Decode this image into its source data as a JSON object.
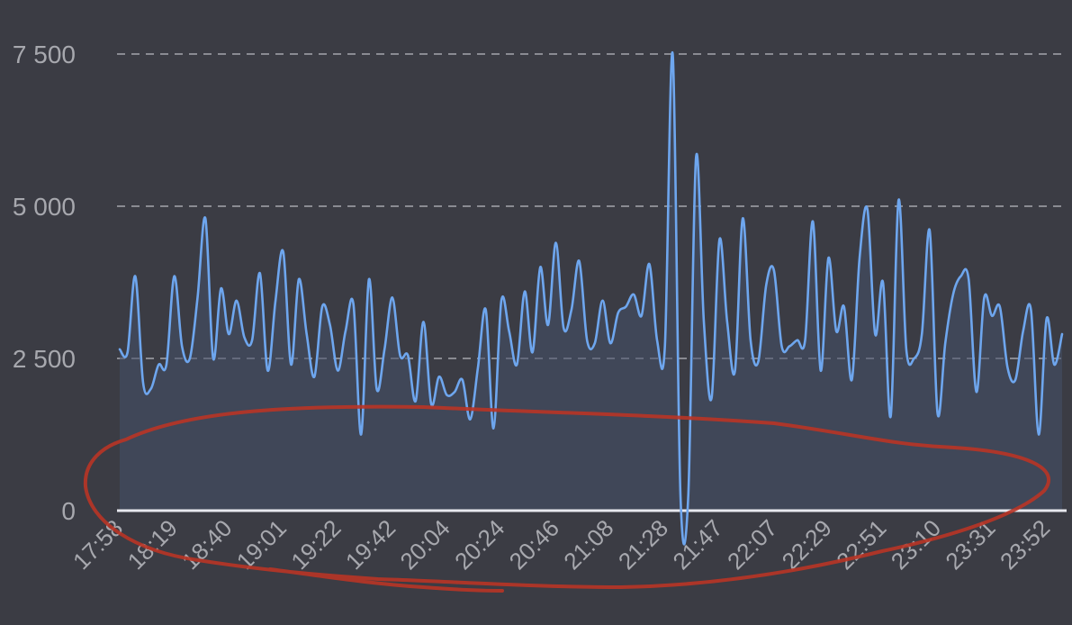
{
  "chart_data": {
    "type": "area",
    "title": "",
    "xlabel": "",
    "ylabel": "",
    "ylim": [
      0,
      7500
    ],
    "yticks": [
      0,
      2500,
      5000,
      7500
    ],
    "ytick_labels": [
      "0",
      "2 500",
      "5 000",
      "7 500"
    ],
    "grid": true,
    "xtick_labels": [
      "17:58",
      "18:19",
      "18:40",
      "19:01",
      "19:22",
      "19:42",
      "20:04",
      "20:24",
      "20:46",
      "21:08",
      "21:28",
      "21:47",
      "22:07",
      "22:29",
      "22:51",
      "23:10",
      "23:31",
      "23:52"
    ],
    "colors": {
      "line": "#6ea6ee",
      "area": "#45506a",
      "annotation": "#b93426"
    },
    "series": [
      {
        "values": [
          2650,
          2600,
          3850,
          2100,
          2000,
          2400,
          2400,
          3850,
          2700,
          2500,
          3500,
          4800,
          2500,
          3650,
          2900,
          3450,
          2850,
          2800,
          3900,
          2300,
          3450,
          4250,
          2400,
          3800,
          2900,
          2200,
          3350,
          3050,
          2300,
          2950,
          3400,
          1250,
          3800,
          2000,
          2650,
          3500,
          2550,
          2550,
          1800,
          3100,
          1750,
          2200,
          1900,
          1950,
          2150,
          1500,
          2350,
          3300,
          1350,
          3450,
          2950,
          2400,
          3600,
          2600,
          4000,
          3050,
          4400,
          3000,
          3300,
          4100,
          2800,
          2750,
          3450,
          2750,
          3250,
          3350,
          3550,
          3200,
          4050,
          2800,
          2700,
          7500,
          250,
          250,
          5800,
          3100,
          1850,
          4450,
          3100,
          2300,
          4800,
          2800,
          2450,
          3700,
          3950,
          2700,
          2700,
          2800,
          2800,
          4750,
          2300,
          4150,
          2950,
          3350,
          2150,
          4150,
          4950,
          2900,
          3750,
          1550,
          5100,
          2650,
          2500,
          2900,
          4600,
          1600,
          2750,
          3550,
          3850,
          3800,
          1950,
          3500,
          3200,
          3350,
          2350,
          2150,
          2950,
          3300,
          1250,
          3150,
          2400,
          2900
        ]
      }
    ]
  }
}
